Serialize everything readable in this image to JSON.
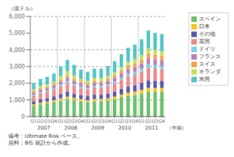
{
  "chart_data": {
    "type": "bar",
    "stacked": true,
    "grid": true,
    "legend": "right",
    "ylabel": "（億ドル）",
    "xlabel": "（年期）",
    "notes": [
      "備考：Ultimate Risk ベース。",
      "資料：BIS 統計から作成。"
    ],
    "categories": [
      "Q1",
      "Q2",
      "Q3",
      "Q4",
      "Q1",
      "Q2",
      "Q3",
      "Q4",
      "Q1",
      "Q2",
      "Q3",
      "Q4",
      "Q1",
      "Q2",
      "Q3",
      "Q4",
      "Q1",
      "Q2",
      "Q3",
      "Q4"
    ],
    "category_groups": [
      "2007",
      "2008",
      "2009",
      "2010",
      "2011"
    ],
    "series": [
      {
        "name": "スペイン",
        "color": "#6abf6a",
        "values": [
          650,
          730,
          780,
          870,
          950,
          1050,
          980,
          920,
          870,
          920,
          920,
          960,
          1050,
          1150,
          1250,
          1300,
          1380,
          1480,
          1480,
          1480
        ]
      },
      {
        "name": "日本",
        "color": "#f5c518",
        "values": [
          90,
          100,
          110,
          120,
          140,
          150,
          140,
          130,
          120,
          130,
          130,
          140,
          150,
          170,
          190,
          200,
          220,
          250,
          240,
          230
        ]
      },
      {
        "name": "その他",
        "color": "#5555aa",
        "values": [
          180,
          200,
          210,
          230,
          260,
          280,
          260,
          240,
          240,
          260,
          260,
          280,
          300,
          330,
          360,
          380,
          410,
          440,
          430,
          420
        ]
      },
      {
        "name": "英国",
        "color": "#f08888",
        "values": [
          320,
          360,
          370,
          390,
          470,
          520,
          470,
          420,
          400,
          430,
          430,
          450,
          490,
          550,
          610,
          630,
          680,
          750,
          730,
          720
        ]
      },
      {
        "name": "ドイツ",
        "color": "#7dd0e8",
        "values": [
          70,
          80,
          80,
          90,
          110,
          120,
          110,
          100,
          90,
          100,
          100,
          110,
          120,
          140,
          160,
          170,
          180,
          210,
          200,
          190
        ]
      },
      {
        "name": "フランス",
        "color": "#b380b3",
        "values": [
          120,
          130,
          140,
          150,
          170,
          190,
          180,
          170,
          160,
          180,
          180,
          190,
          210,
          240,
          270,
          290,
          310,
          360,
          350,
          340
        ]
      },
      {
        "name": "スイス",
        "color": "#f4a050",
        "values": [
          90,
          100,
          100,
          110,
          140,
          150,
          140,
          130,
          120,
          130,
          130,
          140,
          150,
          190,
          210,
          220,
          240,
          300,
          280,
          270
        ]
      },
      {
        "name": "オランダ",
        "color": "#c8e050",
        "values": [
          110,
          120,
          130,
          140,
          190,
          260,
          190,
          150,
          150,
          160,
          160,
          170,
          190,
          210,
          230,
          240,
          260,
          290,
          280,
          270
        ]
      },
      {
        "name": "米国",
        "color": "#4fc4c4",
        "values": [
          380,
          430,
          460,
          480,
          580,
          680,
          630,
          560,
          530,
          560,
          560,
          580,
          660,
          760,
          840,
          880,
          950,
          1080,
          1030,
          1030
        ]
      }
    ],
    "ylim": [
      0,
      6000
    ],
    "yticks": [
      0,
      {
        "value": 1000,
        "label": "1,000"
      },
      {
        "value": 2000,
        "label": "2,000"
      },
      {
        "value": 3000,
        "label": "3,000"
      },
      {
        "value": 4000,
        "label": "4,000"
      },
      {
        "value": 5000,
        "label": "5,000"
      },
      {
        "value": 6000,
        "label": "6,000"
      }
    ]
  }
}
